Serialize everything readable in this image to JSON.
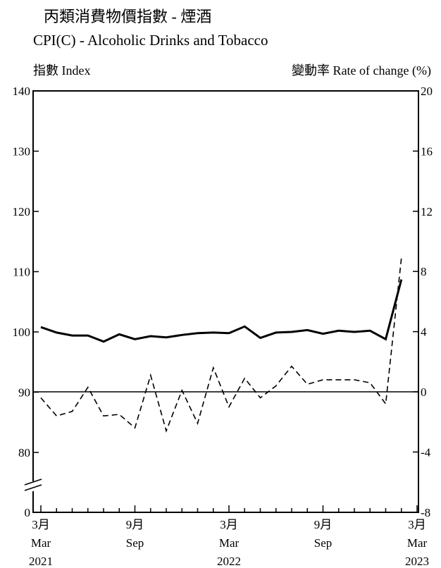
{
  "chart_data": {
    "type": "line",
    "title_zh": "丙類消費物價指數 - 煙酒",
    "title_en": "CPI(C) - Alcoholic Drinks and Tobacco",
    "ylabel_left": "指數  Index",
    "ylabel_right": "變動率  Rate of change (%)",
    "y_left": {
      "min": 0,
      "max": 140,
      "ticks": [
        0,
        80,
        90,
        100,
        110,
        120,
        130,
        140
      ],
      "break_between": [
        0,
        80
      ]
    },
    "y_right": {
      "min": -8,
      "max": 20,
      "ticks": [
        -8,
        -4,
        0,
        4,
        8,
        12,
        16,
        20
      ]
    },
    "x_labels": [
      {
        "index": 0,
        "zh": "3月",
        "en": "Mar",
        "year": "2021"
      },
      {
        "index": 6,
        "zh": "9月",
        "en": "Sep",
        "year": ""
      },
      {
        "index": 12,
        "zh": "3月",
        "en": "Mar",
        "year": "2022"
      },
      {
        "index": 18,
        "zh": "9月",
        "en": "Sep",
        "year": ""
      },
      {
        "index": 24,
        "zh": "3月",
        "en": "Mar",
        "year": "2023"
      }
    ],
    "months": [
      "2021-03",
      "2021-04",
      "2021-05",
      "2021-06",
      "2021-07",
      "2021-08",
      "2021-09",
      "2021-10",
      "2021-11",
      "2021-12",
      "2022-01",
      "2022-02",
      "2022-03",
      "2022-04",
      "2022-05",
      "2022-06",
      "2022-07",
      "2022-08",
      "2022-09",
      "2022-10",
      "2022-11",
      "2022-12",
      "2023-01",
      "2023-02"
    ],
    "series": [
      {
        "axis": "left",
        "style": "solid",
        "values": [
          100.8,
          99.9,
          99.4,
          99.4,
          98.4,
          99.6,
          98.8,
          99.3,
          99.1,
          99.5,
          99.8,
          99.9,
          99.8,
          100.9,
          99.0,
          99.9,
          100.0,
          100.3,
          99.7,
          100.2,
          100.0,
          100.2,
          98.8,
          108.7
        ]
      },
      {
        "axis": "right",
        "style": "dashed",
        "values": [
          -0.4,
          -1.6,
          -1.3,
          0.3,
          -1.6,
          -1.5,
          -2.4,
          1.1,
          -2.6,
          0.1,
          -2.1,
          1.6,
          -1.0,
          0.9,
          -0.4,
          0.4,
          1.7,
          0.5,
          0.8,
          0.8,
          0.8,
          0.6,
          -0.8,
          8.9
        ]
      }
    ]
  }
}
